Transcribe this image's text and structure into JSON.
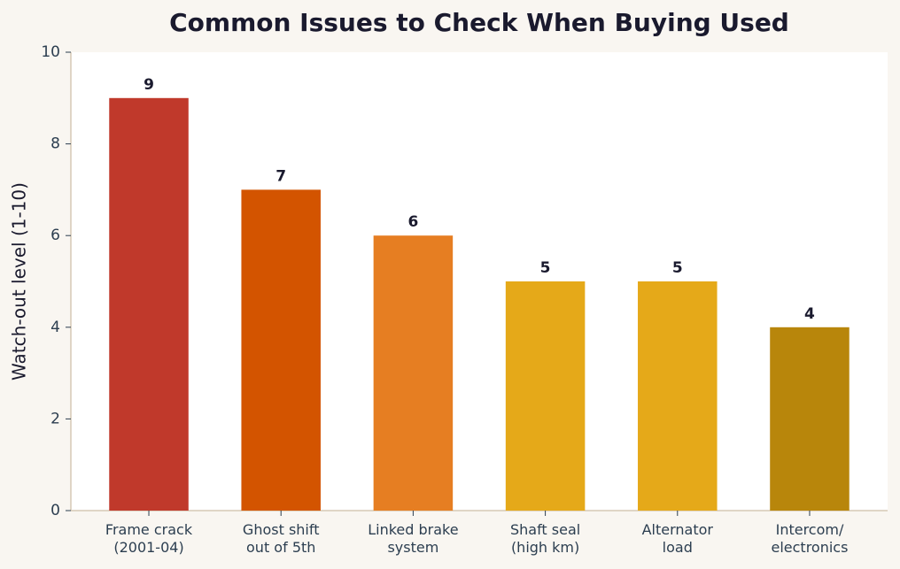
{
  "chart_data": {
    "type": "bar",
    "title": "Common Issues to Check When Buying Used",
    "y_label": "Watch-out level (1-10)",
    "categories": [
      "Frame crack\n(2001-04)",
      "Ghost shift\nout of 5th",
      "Linked brake\nsystem",
      "Shaft seal\n(high km)",
      "Alternator\nload",
      "Intercom/\nelectronics"
    ],
    "values": [
      9,
      7,
      6,
      5,
      5,
      4
    ],
    "colors": [
      "#c0392b",
      "#d35400",
      "#e67e22",
      "#e5a919",
      "#e5a919",
      "#b8860b"
    ],
    "ylim": [
      0,
      10
    ],
    "yticks": [
      0,
      2,
      4,
      6,
      8,
      10
    ],
    "grid": false
  }
}
